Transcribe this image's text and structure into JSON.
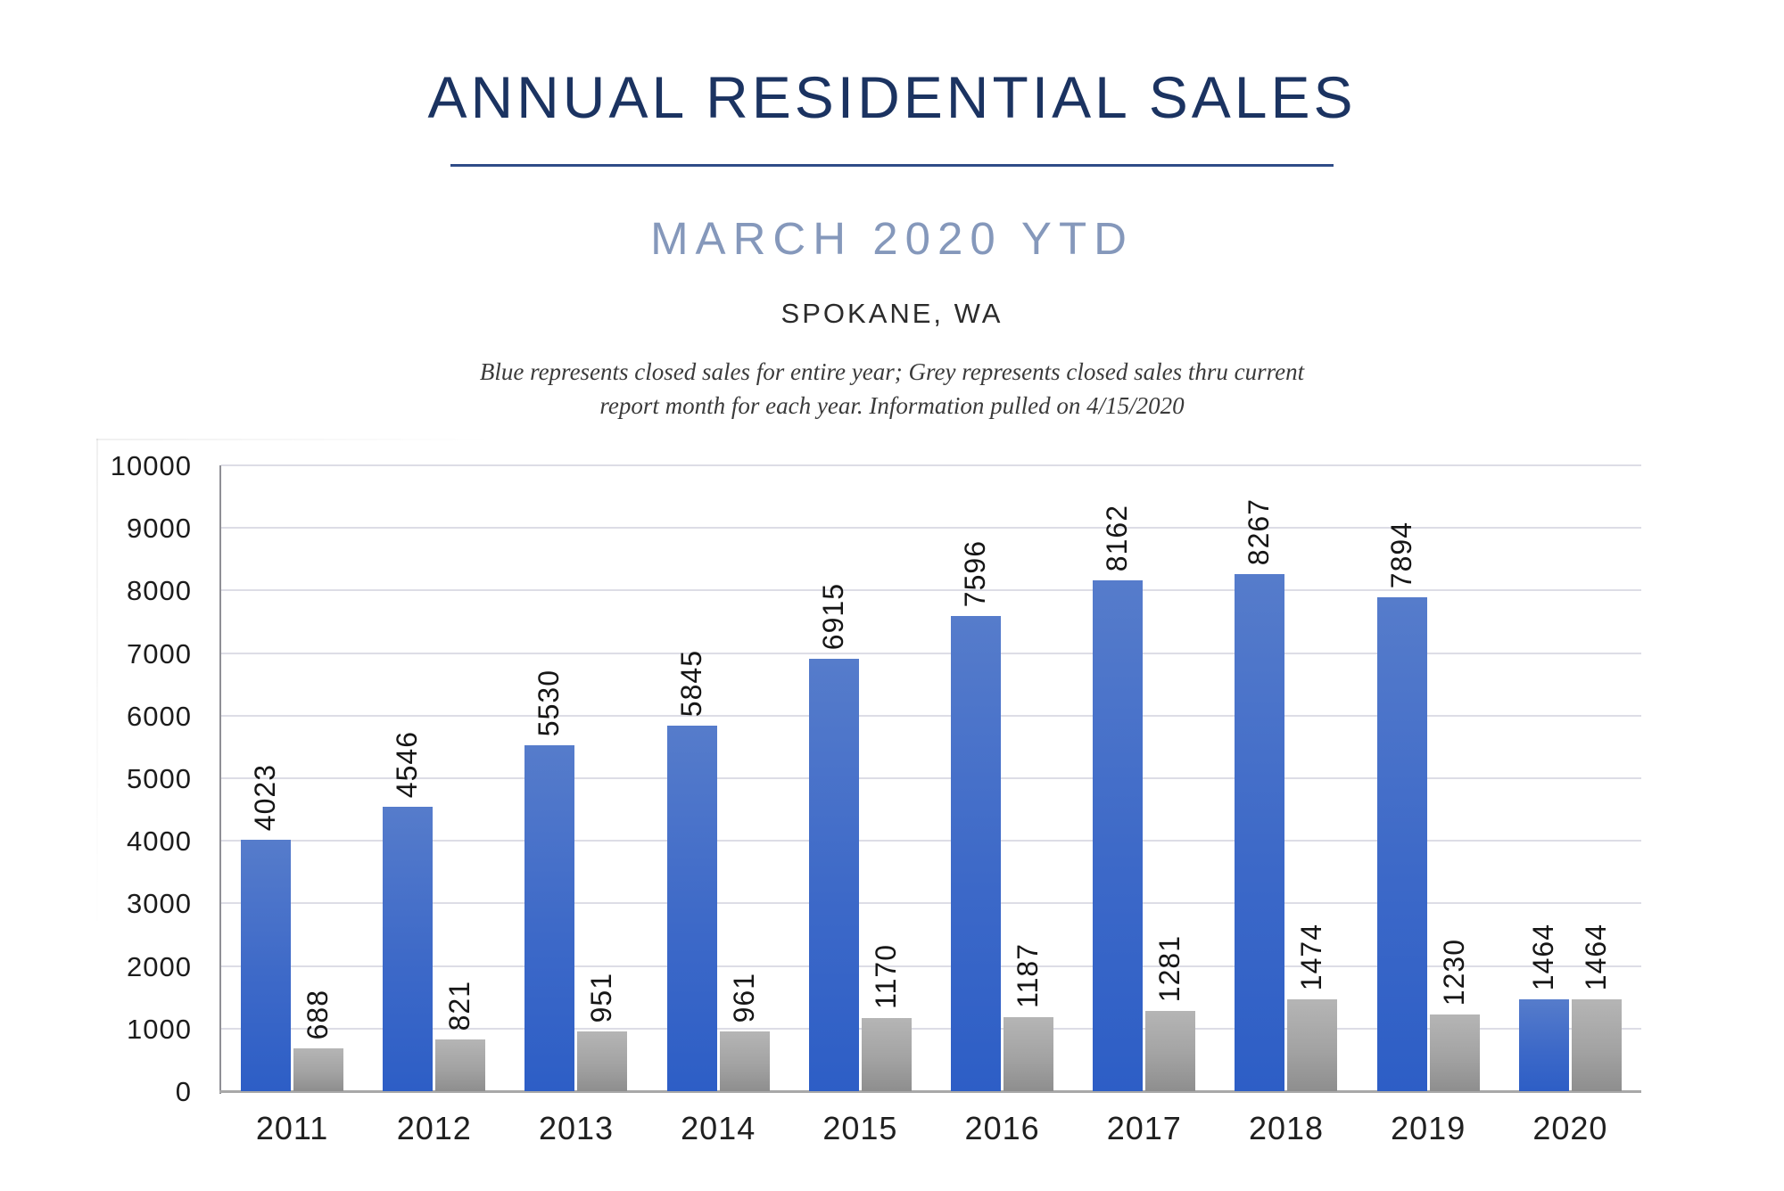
{
  "header": {
    "title": "ANNUAL RESIDENTIAL SALES",
    "subtitle": "MARCH 2020 YTD",
    "location": "SPOKANE, WA",
    "note_line1": "Blue represents closed sales for entire year; Grey represents closed sales thru current",
    "note_line2": "report month for each year.  Information pulled on 4/15/2020"
  },
  "colors": {
    "title_navy": "#1B3361",
    "subtitle_slate_blue": "#8598BB",
    "bar_blue_top": "#567CCB",
    "bar_blue_bottom": "#2D5EC6",
    "bar_grey_top": "#B5B5B5",
    "bar_grey_bottom": "#8E8E8E",
    "gridline": "#DDDDE6",
    "x_axis_line": "#A8A8A8",
    "y_axis_line": "#8F8F95"
  },
  "chart_data": {
    "type": "bar",
    "title": "ANNUAL RESIDENTIAL SALES — MARCH 2020 YTD — SPOKANE, WA",
    "categories": [
      "2011",
      "2012",
      "2013",
      "2014",
      "2015",
      "2016",
      "2017",
      "2018",
      "2019",
      "2020"
    ],
    "series": [
      {
        "name": "Closed sales for entire year (blue)",
        "color_key": "blue",
        "values": [
          4023,
          4546,
          5530,
          5845,
          6915,
          7596,
          8162,
          8267,
          7894,
          1464
        ]
      },
      {
        "name": "Closed sales thru current report month (grey)",
        "color_key": "grey",
        "values": [
          688,
          821,
          951,
          961,
          1170,
          1187,
          1281,
          1474,
          1230,
          1464
        ]
      }
    ],
    "xlabel": "",
    "ylabel": "",
    "ylim": [
      0,
      10000
    ],
    "ytick_step": 1000,
    "grid": "horizontal",
    "value_labels": "rotated 90° above each bar",
    "legend_position": "none (explained in italic note)"
  }
}
